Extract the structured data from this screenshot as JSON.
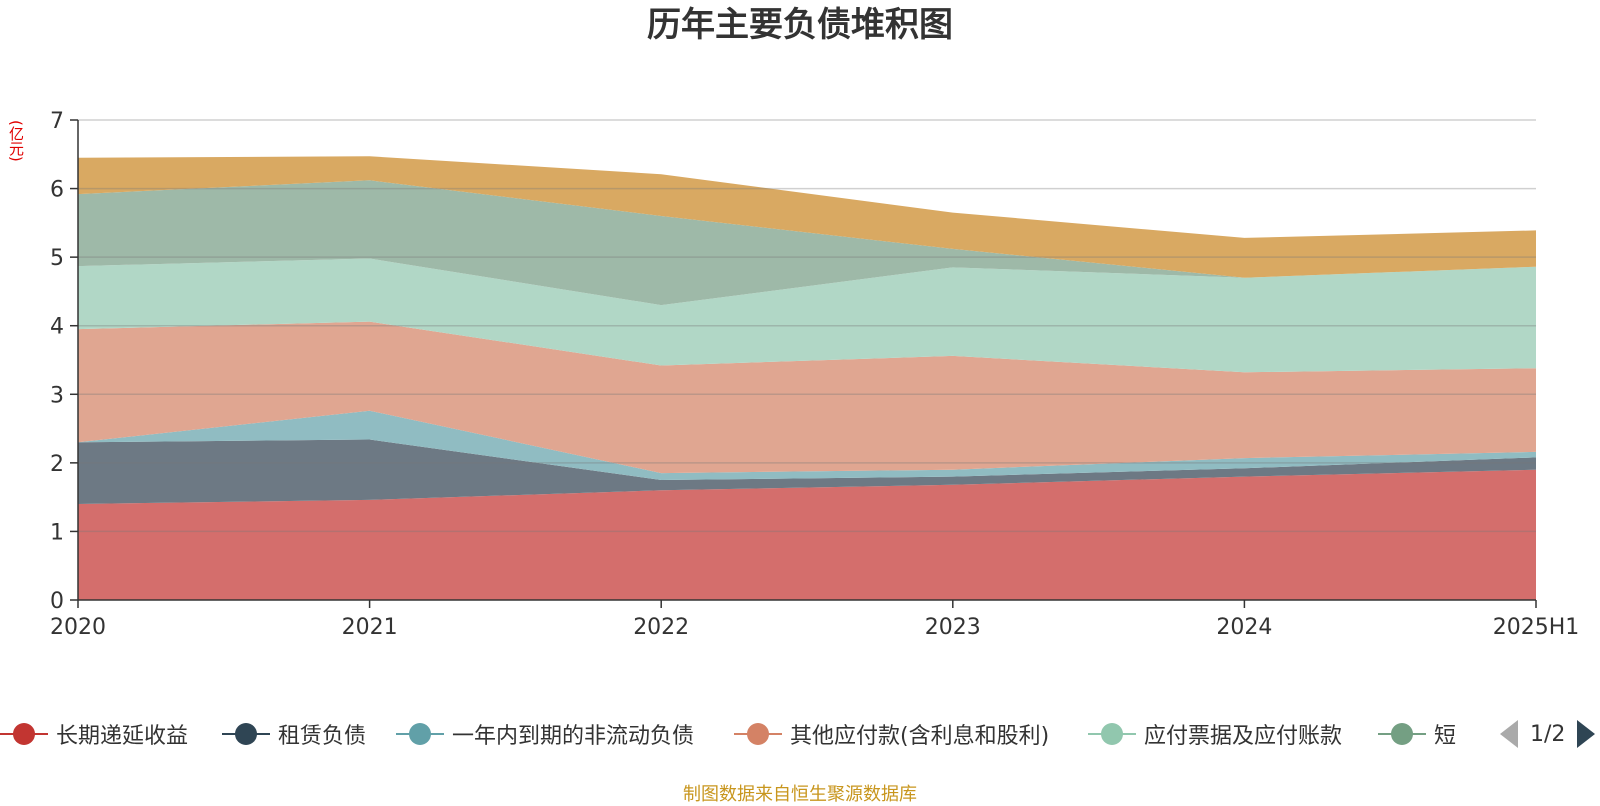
{
  "title": "历年主要负债堆积图",
  "unit_label": "(亿元)",
  "source_note": "制图数据来自恒生聚源数据库",
  "pager": {
    "text": "1/2"
  },
  "legend": [
    {
      "name": "长期递延收益",
      "color": "#c23531"
    },
    {
      "name": "租赁负债",
      "color": "#2f4554"
    },
    {
      "name": "一年内到期的非流动负债",
      "color": "#61a0a8"
    },
    {
      "name": "其他应付款(含利息和股利)",
      "color": "#d48265"
    },
    {
      "name": "应付票据及应付账款",
      "color": "#91c7ae"
    },
    {
      "name": "短",
      "color": "#749f83"
    }
  ],
  "chart_data": {
    "type": "area",
    "stacked": true,
    "title": "历年主要负债堆积图",
    "ylabel": "(亿元)",
    "x": [
      "2020",
      "2021",
      "2022",
      "2023",
      "2024",
      "2025H1"
    ],
    "ylim": [
      0,
      7
    ],
    "yticks": [
      0,
      1,
      2,
      3,
      4,
      5,
      6,
      7
    ],
    "grid": "horizontal",
    "series": [
      {
        "name": "长期递延收益",
        "color": "#d46e6c",
        "values": [
          1.4,
          1.46,
          1.6,
          1.68,
          1.8,
          1.9
        ]
      },
      {
        "name": "租赁负债",
        "color": "#6d7984",
        "values": [
          0.9,
          0.88,
          0.15,
          0.12,
          0.12,
          0.18
        ]
      },
      {
        "name": "一年内到期的非流动负债",
        "color": "#90bcc2",
        "values": [
          0.0,
          0.42,
          0.1,
          0.1,
          0.15,
          0.08
        ]
      },
      {
        "name": "其他应付款(含利息和股利)",
        "color": "#e0a691",
        "values": [
          1.65,
          1.3,
          1.57,
          1.66,
          1.25,
          1.22
        ]
      },
      {
        "name": "应付票据及应付账款",
        "color": "#b1d7c6",
        "values": [
          0.92,
          0.92,
          0.88,
          1.29,
          1.38,
          1.48
        ]
      },
      {
        "name": "",
        "color": "#9eb9a8",
        "values": [
          1.05,
          1.14,
          1.3,
          0.27,
          0.0,
          0.0
        ]
      },
      {
        "name": "",
        "color": "#d9a962",
        "values": [
          0.53,
          0.35,
          0.61,
          0.53,
          0.58,
          0.53
        ]
      }
    ]
  }
}
